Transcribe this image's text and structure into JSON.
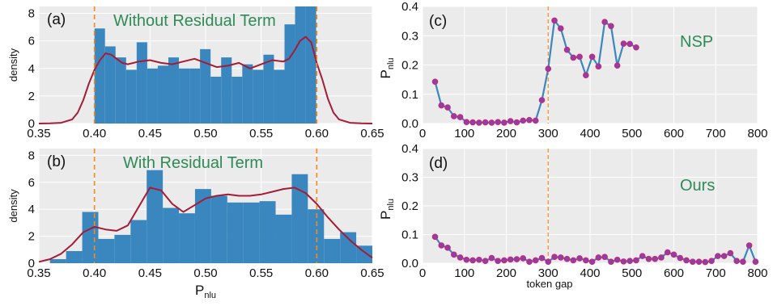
{
  "colors": {
    "bar": "#3a87c0",
    "kde": "#a51c36",
    "threshold": "#f28a1c",
    "line": "#3a87c0",
    "marker_face": "#8e3fa8",
    "marker_edge": "#d0246e",
    "annotation": "#2e8b57",
    "plot_bg": "#ebebeb",
    "grid": "#ffffff"
  },
  "chart_data": [
    {
      "id": "a",
      "type": "bar",
      "panel_label": "(a)",
      "annotation": "Without Residual Term",
      "xlabel": "",
      "ylabel": "density",
      "xlim": [
        0.35,
        0.65
      ],
      "ylim": [
        0,
        8.5
      ],
      "xticks": [
        "0.35",
        "0.40",
        "0.45",
        "0.50",
        "0.55",
        "0.60",
        "0.65"
      ],
      "yticks": [
        "0",
        "2",
        "4",
        "6",
        "8"
      ],
      "thresholds": [
        0.4,
        0.6
      ],
      "bin_edges": [
        0.4,
        0.4095,
        0.419,
        0.4285,
        0.438,
        0.4475,
        0.457,
        0.4665,
        0.476,
        0.4855,
        0.495,
        0.5045,
        0.514,
        0.5235,
        0.533,
        0.5425,
        0.552,
        0.5615,
        0.571,
        0.5805,
        0.59,
        0.5995
      ],
      "values": [
        6.9,
        5.6,
        4.8,
        3.9,
        5.9,
        4.0,
        4.2,
        4.8,
        4.0,
        4.0,
        5.4,
        3.4,
        4.8,
        3.4,
        4.3,
        3.9,
        5.0,
        3.9,
        7.2,
        8.5,
        8.5
      ],
      "kde": {
        "x": [
          0.35,
          0.36,
          0.37,
          0.38,
          0.385,
          0.39,
          0.395,
          0.4,
          0.405,
          0.41,
          0.415,
          0.42,
          0.425,
          0.43,
          0.44,
          0.45,
          0.46,
          0.47,
          0.48,
          0.49,
          0.5,
          0.51,
          0.52,
          0.53,
          0.54,
          0.55,
          0.56,
          0.57,
          0.575,
          0.58,
          0.585,
          0.59,
          0.595,
          0.6,
          0.605,
          0.61,
          0.615,
          0.62,
          0.63,
          0.64,
          0.65
        ],
        "y": [
          0,
          0.01,
          0.05,
          0.3,
          0.8,
          1.7,
          2.9,
          3.9,
          4.6,
          5.1,
          5.0,
          4.7,
          4.4,
          4.3,
          4.5,
          4.6,
          4.4,
          4.3,
          4.5,
          4.7,
          4.4,
          4.1,
          4.2,
          4.4,
          4.0,
          4.3,
          4.6,
          4.5,
          4.7,
          5.3,
          6.0,
          6.3,
          5.9,
          4.4,
          3.2,
          1.8,
          0.8,
          0.3,
          0.05,
          0.01,
          0
        ]
      }
    },
    {
      "id": "b",
      "type": "bar",
      "panel_label": "(b)",
      "annotation": "With Residual Term",
      "xlabel": "Pnlu",
      "ylabel": "density",
      "xlim": [
        0.35,
        0.65
      ],
      "ylim": [
        0,
        8.5
      ],
      "xticks": [
        "0.35",
        "0.40",
        "0.45",
        "0.50",
        "0.55",
        "0.60",
        "0.65"
      ],
      "yticks": [
        "0",
        "2",
        "4",
        "6",
        "8"
      ],
      "thresholds": [
        0.4,
        0.6
      ],
      "bin_edges": [
        0.36,
        0.3745,
        0.389,
        0.4035,
        0.418,
        0.4325,
        0.447,
        0.4615,
        0.476,
        0.4905,
        0.505,
        0.5195,
        0.534,
        0.5485,
        0.563,
        0.5775,
        0.592,
        0.6065,
        0.621,
        0.6355,
        0.65
      ],
      "values": [
        0.3,
        0.9,
        3.8,
        1.8,
        2.1,
        3.2,
        6.9,
        4.1,
        3.7,
        5.5,
        5.0,
        4.5,
        4.5,
        4.6,
        3.6,
        6.6,
        4.0,
        1.8,
        2.3,
        1.3
      ],
      "kde": {
        "x": [
          0.35,
          0.36,
          0.37,
          0.38,
          0.39,
          0.4,
          0.41,
          0.42,
          0.43,
          0.44,
          0.45,
          0.46,
          0.47,
          0.48,
          0.49,
          0.5,
          0.51,
          0.52,
          0.53,
          0.54,
          0.55,
          0.56,
          0.57,
          0.58,
          0.59,
          0.6,
          0.61,
          0.62,
          0.63,
          0.64,
          0.65
        ],
        "y": [
          0.1,
          0.3,
          0.7,
          1.4,
          2.3,
          2.7,
          2.5,
          2.4,
          2.8,
          4.2,
          5.6,
          5.4,
          4.4,
          3.8,
          4.3,
          4.8,
          5.0,
          5.1,
          5.0,
          5.0,
          5.1,
          5.3,
          5.5,
          5.6,
          5.2,
          4.4,
          3.4,
          2.5,
          1.7,
          1.0,
          0.4
        ]
      }
    },
    {
      "id": "c",
      "type": "line",
      "panel_label": "(c)",
      "annotation": "NSP",
      "xlabel": "",
      "ylabel": "Pnlu",
      "xlim": [
        0,
        800
      ],
      "ylim": [
        0,
        0.4
      ],
      "xticks": [
        "0",
        "100",
        "200",
        "300",
        "400",
        "500",
        "600",
        "700",
        "800"
      ],
      "yticks": [
        "0.0",
        "0.1",
        "0.2",
        "0.3",
        "0.4"
      ],
      "vline": 300,
      "x": [
        30,
        45,
        60,
        75,
        90,
        105,
        120,
        135,
        150,
        165,
        180,
        195,
        210,
        225,
        240,
        255,
        270,
        285,
        300,
        315,
        330,
        345,
        360,
        375,
        390,
        405,
        420,
        435,
        450,
        465,
        480,
        495,
        510
      ],
      "y": [
        0.143,
        0.062,
        0.055,
        0.025,
        0.022,
        0.005,
        0.004,
        0.003,
        0.004,
        0.003,
        0.005,
        0.003,
        0.008,
        0.004,
        0.01,
        0.012,
        0.01,
        0.08,
        0.187,
        0.352,
        0.325,
        0.252,
        0.225,
        0.228,
        0.165,
        0.228,
        0.195,
        0.347,
        0.333,
        0.198,
        0.273,
        0.272,
        0.26
      ]
    },
    {
      "id": "d",
      "type": "line",
      "panel_label": "(d)",
      "annotation": "Ours",
      "xlabel": "token gap",
      "ylabel": "Pnlu",
      "xlim": [
        0,
        800
      ],
      "ylim": [
        0,
        0.4
      ],
      "xticks": [
        "0",
        "100",
        "200",
        "300",
        "400",
        "500",
        "600",
        "700",
        "800"
      ],
      "yticks": [
        "0.0",
        "0.1",
        "0.2",
        "0.3",
        "0.4"
      ],
      "vline": 300,
      "x": [
        30,
        45,
        60,
        75,
        90,
        105,
        120,
        135,
        150,
        165,
        180,
        195,
        210,
        225,
        240,
        255,
        270,
        285,
        300,
        315,
        330,
        345,
        360,
        375,
        390,
        405,
        420,
        435,
        450,
        465,
        480,
        495,
        510,
        525,
        540,
        555,
        570,
        585,
        600,
        615,
        630,
        645,
        660,
        675,
        690,
        705,
        720,
        735,
        750,
        765,
        780,
        795
      ],
      "y": [
        0.092,
        0.062,
        0.054,
        0.03,
        0.02,
        0.012,
        0.01,
        0.012,
        0.008,
        0.018,
        0.008,
        0.01,
        0.013,
        0.014,
        0.017,
        0.005,
        0.01,
        0.018,
        0.005,
        0.022,
        0.02,
        0.015,
        0.01,
        0.017,
        0.01,
        0.005,
        0.02,
        0.022,
        0.005,
        0.012,
        0.006,
        0.008,
        0.01,
        0.025,
        0.015,
        0.015,
        0.02,
        0.038,
        0.03,
        0.018,
        0.01,
        0.005,
        0.005,
        0.004,
        0.008,
        0.025,
        0.025,
        0.035,
        0.008,
        0.005,
        0.062,
        0.005
      ]
    }
  ]
}
